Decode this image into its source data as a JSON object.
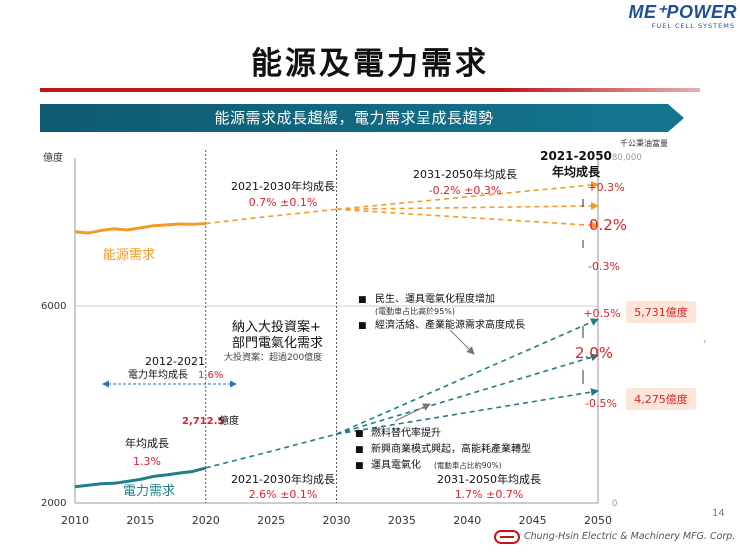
{
  "brand": {
    "logo_text": "ME⁺POWER",
    "logo_subtitle": "FUEL CELL SYSTEMS",
    "company": "Chung-Hsin Electric & Machinery MFG. Corp."
  },
  "page": {
    "title": "能源及電力需求",
    "banner": "能源需求成長趨緩，電力需求呈成長趨勢",
    "page_number": "14",
    "side_mark": "‹"
  },
  "colors": {
    "energy": "#f39a28",
    "power": "#1e7f86",
    "red": "#d8232a",
    "banner": "#12687f"
  },
  "annotations": {
    "energy_label": "能源需求",
    "power_label": "電力需求",
    "energy_growth_2021_2030": {
      "title": "2021-2030年均成長",
      "value": "0.7% ±0.1%"
    },
    "energy_growth_2031_2050": {
      "title": "2031-2050年均成長",
      "value": "-0.2% ±0.3%"
    },
    "energy_growth_2021_2050": {
      "title_line1": "2021-2050",
      "title_line2": "年均成長",
      "high": "+0.3%",
      "mid": "0.2%",
      "low": "-0.3%"
    },
    "power_growth_2012_2021": {
      "title": "2012-2021",
      "label": "電力年均成長",
      "value": "1.6%"
    },
    "power_historic": {
      "title": "年均成長",
      "value": "1.3%"
    },
    "power_2020": {
      "value": "2,712.5",
      "unit": "億度"
    },
    "power_growth_2021_2030": {
      "title": "2021-2030年均成長",
      "value": "2.6% ±0.1%"
    },
    "power_growth_2031_2050": {
      "title": "2031-2050年均成長",
      "value": "1.7% ±0.7%"
    },
    "power_growth_2021_2050": {
      "high": "+0.5%",
      "mid": "2.0%",
      "low": "-0.5%"
    },
    "power_high_value": "5,731億度",
    "power_low_value": "4,275億度",
    "investment": {
      "line1": "納入大投資案+",
      "line2": "部門電氣化需求",
      "line3": "大投資案：超過200億度"
    },
    "factors_energy": [
      {
        "bullet": "■",
        "text": "民生、運具電氣化程度增加"
      },
      {
        "bullet": "",
        "text": "(電動車占比高於95%)"
      },
      {
        "bullet": "■",
        "text": "經濟活絡、產業能源需求高度成長"
      }
    ],
    "factors_power": [
      {
        "bullet": "■",
        "text": "燃料替代率提升"
      },
      {
        "bullet": "■",
        "text": "新興商業模式興起，高能耗產業轉型"
      },
      {
        "bullet": "■",
        "text": "運具電氣化",
        "note": "(電動車占比約90%)"
      }
    ]
  },
  "chart_data": {
    "type": "line",
    "x_ticks": [
      "2010",
      "2015",
      "2020",
      "2025",
      "2030",
      "2035",
      "2040",
      "2045",
      "2050"
    ],
    "xlim": [
      2010,
      2050
    ],
    "left_axis": {
      "label": "億度",
      "ticks": [
        "6000",
        "2000"
      ],
      "range": [
        2000,
        10000
      ]
    },
    "right_axis": {
      "label": "千公秉油當量",
      "ticks": [
        "80,000",
        "0"
      ],
      "range": [
        0,
        80000
      ]
    },
    "grid": false,
    "vertical_markers": [
      2020,
      2030
    ],
    "series": [
      {
        "name": "能源需求",
        "axis": "right",
        "style": "solid",
        "x": [
          2010,
          2011,
          2012,
          2013,
          2014,
          2015,
          2016,
          2017,
          2018,
          2019,
          2020
        ],
        "values": [
          62900,
          62600,
          63200,
          63600,
          63300,
          63800,
          64300,
          64500,
          64700,
          64600,
          64800
        ]
      },
      {
        "axis": "right",
        "style": "dashed",
        "x": [
          2020,
          2025,
          2030
        ],
        "values": [
          64800,
          66500,
          68100
        ]
      },
      {
        "axis": "right",
        "style": "dashed",
        "x": [
          2030,
          2050
        ],
        "values": [
          68100,
          73900
        ]
      },
      {
        "axis": "right",
        "style": "dashed",
        "x": [
          2030,
          2050
        ],
        "values": [
          68100,
          68900
        ]
      },
      {
        "axis": "right",
        "style": "dashed",
        "x": [
          2030,
          2050
        ],
        "values": [
          68100,
          64300
        ]
      },
      {
        "name": "電力需求",
        "axis": "left",
        "style": "solid",
        "x": [
          2010,
          2011,
          2012,
          2013,
          2014,
          2015,
          2016,
          2017,
          2018,
          2019,
          2020
        ],
        "values": [
          2330,
          2360,
          2390,
          2400,
          2440,
          2480,
          2540,
          2570,
          2610,
          2640,
          2712.5
        ]
      },
      {
        "axis": "left",
        "style": "dashed",
        "x": [
          2020,
          2025,
          2030
        ],
        "values": [
          2712.5,
          3050,
          3400
        ]
      },
      {
        "axis": "left",
        "style": "dashed",
        "x": [
          2030,
          2050
        ],
        "values": [
          3400,
          5731
        ]
      },
      {
        "axis": "left",
        "style": "dashed",
        "x": [
          2030,
          2050
        ],
        "values": [
          3400,
          5000
        ]
      },
      {
        "axis": "left",
        "style": "dashed",
        "x": [
          2030,
          2050
        ],
        "values": [
          3400,
          4275
        ]
      }
    ]
  }
}
